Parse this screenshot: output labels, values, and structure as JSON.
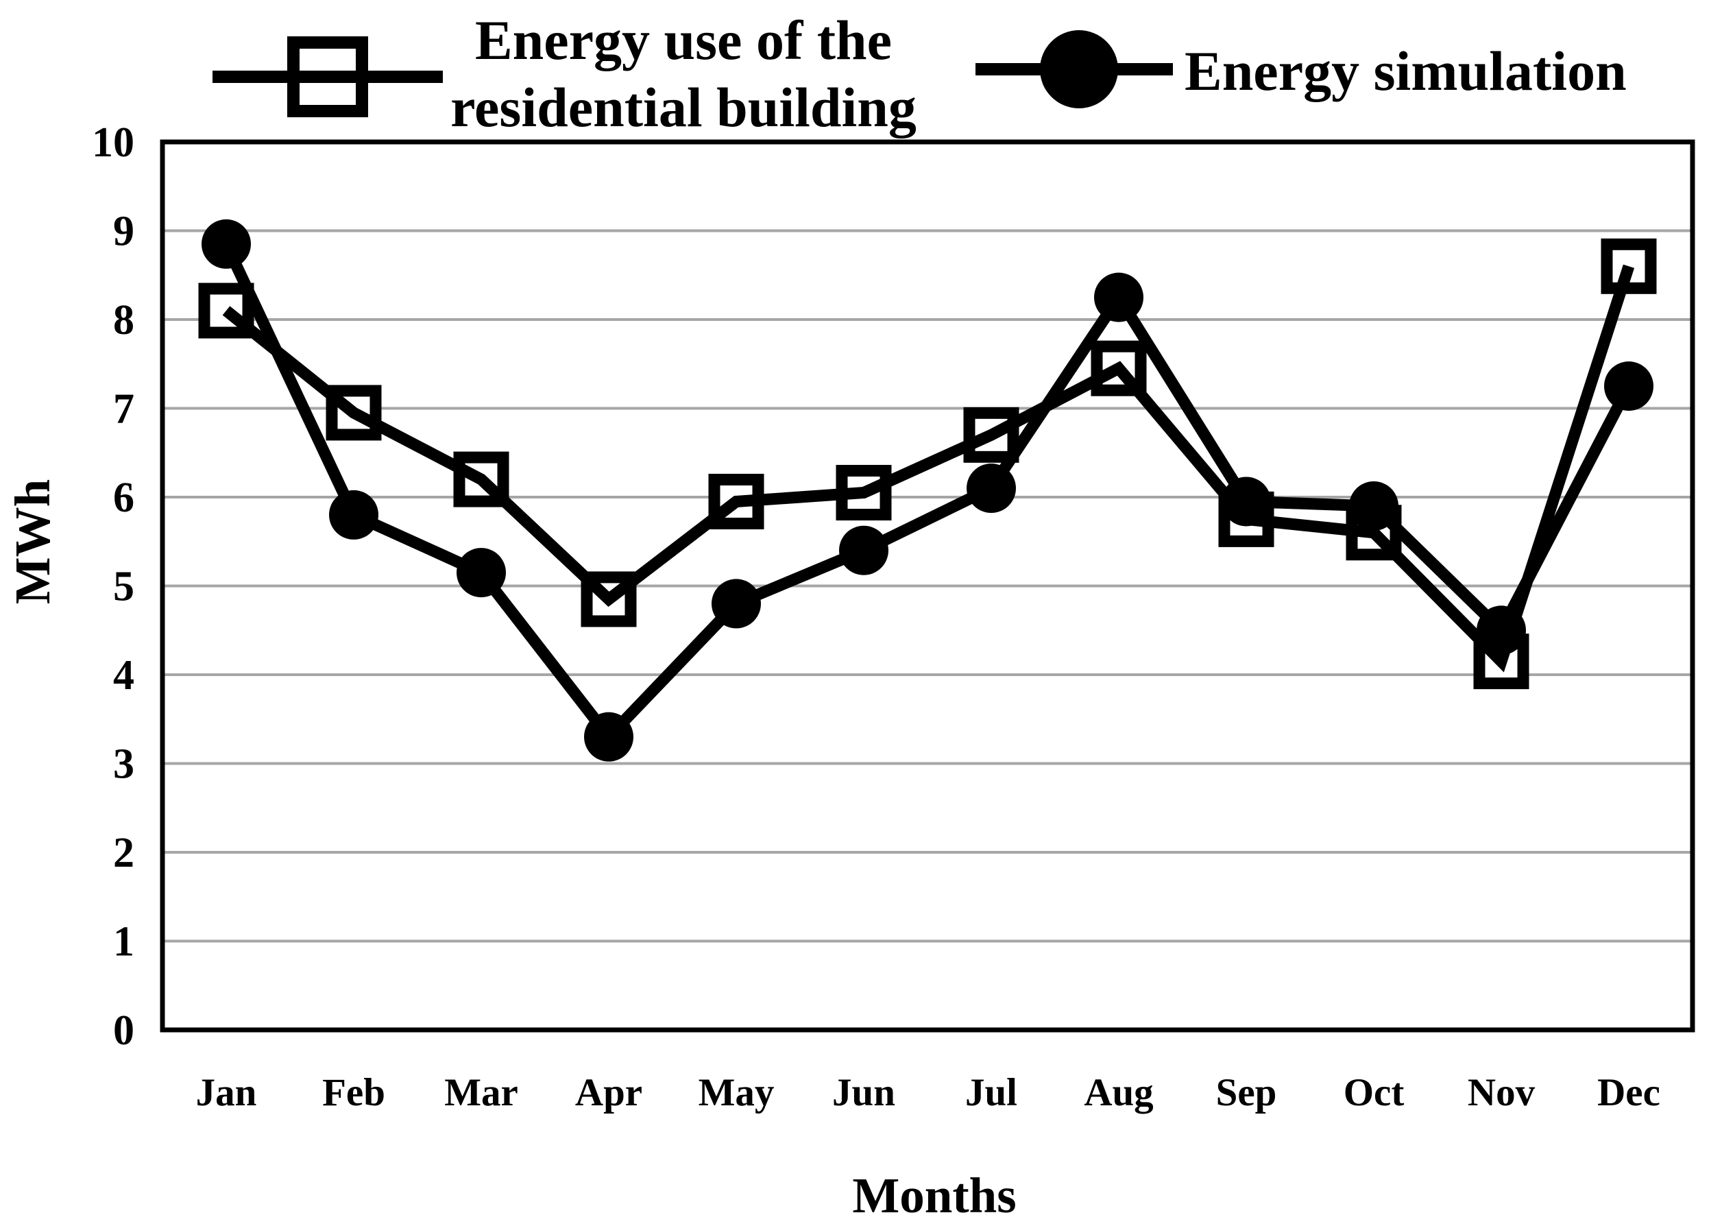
{
  "figure": {
    "background": "#ffffff",
    "line_color": "#000000",
    "gridline_color": "#a6a6a6"
  },
  "chart_data": {
    "type": "line",
    "title": "",
    "categories": [
      "Jan",
      "Feb",
      "Mar",
      "Apr",
      "May",
      "Jun",
      "Jul",
      "Aug",
      "Sep",
      "Oct",
      "Nov",
      "Dec"
    ],
    "xlabel": "Months",
    "ylabel": "MWh",
    "ylim": [
      0,
      10
    ],
    "y_ticks": [
      0,
      1,
      2,
      3,
      4,
      5,
      6,
      7,
      8,
      9,
      10
    ],
    "grid": "horizontal",
    "legend_position": "top",
    "series": [
      {
        "name": "Energy use of the residential building",
        "label_lines": [
          "Energy use of the",
          "residential building"
        ],
        "marker": "open-square",
        "values": [
          8.1,
          6.95,
          6.2,
          4.85,
          5.95,
          6.05,
          6.7,
          7.45,
          5.75,
          5.6,
          4.15,
          8.6
        ]
      },
      {
        "name": "Energy simulation",
        "label_lines": [
          "Energy simulation"
        ],
        "marker": "filled-circle",
        "values": [
          8.85,
          5.8,
          5.15,
          3.3,
          4.8,
          5.4,
          6.1,
          8.25,
          5.95,
          5.9,
          4.5,
          7.25
        ]
      }
    ]
  }
}
